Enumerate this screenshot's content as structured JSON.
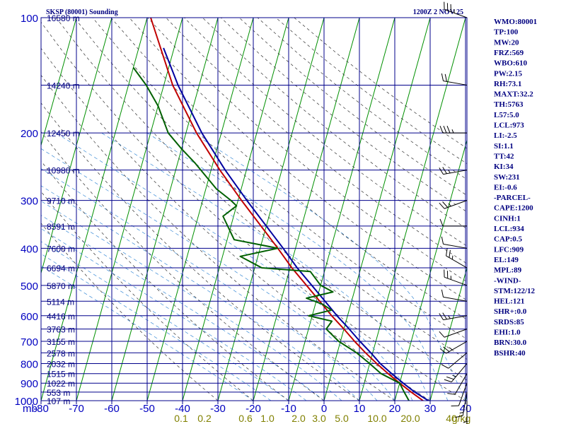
{
  "header": {
    "station": "SKSP (80001) Sounding",
    "datetime": "1200Z  2 NOV 25"
  },
  "chart_data": {
    "type": "skew-t",
    "title": "SKSP (80001) Sounding",
    "pressure_unit": "mb",
    "temp_unit": "C",
    "mixing_ratio_unit": "g/kg",
    "pressure_ticks": [
      100,
      200,
      300,
      400,
      500,
      600,
      700,
      800,
      900,
      1000
    ],
    "temp_ticks": [
      -80,
      -70,
      -60,
      -50,
      -40,
      -30,
      -20,
      -10,
      0,
      10,
      20,
      30,
      40
    ],
    "temp_tick_labels": [
      "-80",
      "-70",
      "-60",
      "-50",
      "-40",
      "-30",
      "-20",
      "-10",
      "0",
      "10",
      "20",
      "30",
      "40"
    ],
    "mixing_ratio_labels": [
      "0.1",
      "0.2",
      "0.6",
      "1.0",
      "2.0",
      "3.0",
      "5.0",
      "10.0",
      "20.0",
      "40",
      "g/kg"
    ],
    "height_labels": [
      {
        "p": 100,
        "label": "16580 m"
      },
      {
        "p": 150,
        "label": "14240 m"
      },
      {
        "p": 200,
        "label": "12450 m"
      },
      {
        "p": 250,
        "label": "10980 m"
      },
      {
        "p": 300,
        "label": "9710 m"
      },
      {
        "p": 350,
        "label": "8591 m"
      },
      {
        "p": 400,
        "label": "7600 m"
      },
      {
        "p": 450,
        "label": "6694 m"
      },
      {
        "p": 500,
        "label": "5870 m"
      },
      {
        "p": 550,
        "label": "5114 m"
      },
      {
        "p": 600,
        "label": "4416 m"
      },
      {
        "p": 650,
        "label": "3763 m"
      },
      {
        "p": 700,
        "label": "3155 m"
      },
      {
        "p": 750,
        "label": "2578 m"
      },
      {
        "p": 800,
        "label": "2032 m"
      },
      {
        "p": 850,
        "label": "1515 m"
      },
      {
        "p": 900,
        "label": "1022 m"
      },
      {
        "p": 950,
        "label": "553 m"
      },
      {
        "p": 1000,
        "label": "107 m"
      }
    ],
    "series": [
      {
        "name": "Virtual temperature (blue)",
        "color": "#0000a0",
        "points": [
          [
            1000,
            29.5
          ],
          [
            950,
            25
          ],
          [
            900,
            21
          ],
          [
            850,
            17
          ],
          [
            800,
            13
          ],
          [
            750,
            9.5
          ],
          [
            700,
            5.5
          ],
          [
            650,
            1.5
          ],
          [
            600,
            -3
          ],
          [
            550,
            -7.5
          ],
          [
            500,
            -12.5
          ],
          [
            450,
            -18
          ],
          [
            400,
            -23.5
          ],
          [
            350,
            -30
          ],
          [
            300,
            -37.5
          ],
          [
            250,
            -46
          ],
          [
            200,
            -55.5
          ],
          [
            150,
            -66
          ],
          [
            120,
            -73
          ]
        ]
      },
      {
        "name": "Parcel temperature (red)",
        "color": "#c00000",
        "points": [
          [
            1000,
            28
          ],
          [
            950,
            24
          ],
          [
            900,
            20
          ],
          [
            850,
            16
          ],
          [
            800,
            12
          ],
          [
            750,
            8
          ],
          [
            700,
            4
          ],
          [
            650,
            0
          ],
          [
            600,
            -4.5
          ],
          [
            550,
            -9
          ],
          [
            500,
            -14
          ],
          [
            450,
            -19.5
          ],
          [
            400,
            -25
          ],
          [
            350,
            -31.5
          ],
          [
            300,
            -39
          ],
          [
            250,
            -47.5
          ],
          [
            200,
            -57
          ],
          [
            150,
            -67.5
          ],
          [
            100,
            -79
          ]
        ]
      },
      {
        "name": "Dewpoint (green)",
        "color": "#006000",
        "points": [
          [
            1000,
            24
          ],
          [
            950,
            22
          ],
          [
            900,
            20
          ],
          [
            850,
            14
          ],
          [
            800,
            10
          ],
          [
            750,
            5.5
          ],
          [
            700,
            -0.5
          ],
          [
            650,
            -5
          ],
          [
            620,
            -4
          ],
          [
            600,
            -11
          ],
          [
            580,
            -5
          ],
          [
            560,
            -8
          ],
          [
            540,
            -13
          ],
          [
            520,
            -6
          ],
          [
            500,
            -10
          ],
          [
            460,
            -14
          ],
          [
            450,
            -28
          ],
          [
            420,
            -35
          ],
          [
            400,
            -25
          ],
          [
            380,
            -38
          ],
          [
            330,
            -43
          ],
          [
            310,
            -40
          ],
          [
            300,
            -42
          ],
          [
            280,
            -47
          ],
          [
            240,
            -55
          ],
          [
            220,
            -60
          ],
          [
            200,
            -65
          ],
          [
            170,
            -70
          ],
          [
            150,
            -75
          ],
          [
            135,
            -80
          ]
        ]
      }
    ]
  },
  "indices": [
    "WMO:80001",
    "TP:100",
    "MW:20",
    "FRZ:569",
    "WBO:610",
    "PW:2.15",
    "RH:73.1",
    "MAXT:32.2",
    "TH:5763",
    "L57:5.0",
    "LCL:973",
    "LI:-2.5",
    "SI:1.1",
    "TT:42",
    "KI:34",
    "SW:231",
    "EI:-0.6",
    "-PARCEL-",
    "CAPE:1200",
    "CINH:1",
    "LCL:934",
    "CAP:0.5",
    "LFC:909",
    "EL:149",
    "MPL:89",
    "-WIND-",
    "STM:122/12",
    "HEL:121",
    "SHR+:0.0",
    "SRDS:85",
    "EHI:1.0",
    "BRN:30.0",
    "BSHR:40"
  ],
  "wind_profile": [
    {
      "p": 100,
      "dir": 290,
      "spd": 25
    },
    {
      "p": 150,
      "dir": 280,
      "spd": 20
    },
    {
      "p": 200,
      "dir": 270,
      "spd": 25
    },
    {
      "p": 250,
      "dir": 260,
      "spd": 15
    },
    {
      "p": 300,
      "dir": 250,
      "spd": 15
    },
    {
      "p": 350,
      "dir": 270,
      "spd": 10
    },
    {
      "p": 400,
      "dir": 280,
      "spd": 10
    },
    {
      "p": 450,
      "dir": 300,
      "spd": 15
    },
    {
      "p": 500,
      "dir": 290,
      "spd": 15
    },
    {
      "p": 550,
      "dir": 280,
      "spd": 10
    },
    {
      "p": 600,
      "dir": 260,
      "spd": 15
    },
    {
      "p": 650,
      "dir": 250,
      "spd": 10
    },
    {
      "p": 700,
      "dir": 240,
      "spd": 15
    },
    {
      "p": 750,
      "dir": 230,
      "spd": 10
    },
    {
      "p": 800,
      "dir": 220,
      "spd": 15
    },
    {
      "p": 850,
      "dir": 210,
      "spd": 10
    },
    {
      "p": 900,
      "dir": 200,
      "spd": 10
    },
    {
      "p": 950,
      "dir": 190,
      "spd": 5
    },
    {
      "p": 1000,
      "dir": 180,
      "spd": 5
    }
  ],
  "colors": {
    "grid": "#00008b",
    "isotherm": "#009000",
    "dry_adiabat": "#303030",
    "moist_adiabat": "#3a8bd6",
    "axis_label": "#0000c0",
    "mixing_label": "#808000",
    "text": "#000080"
  }
}
